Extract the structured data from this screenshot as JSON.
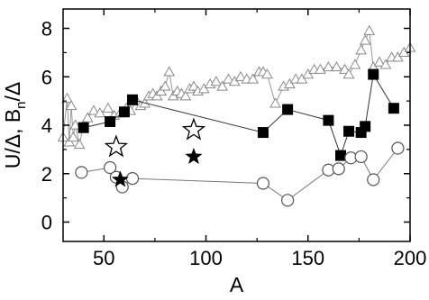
{
  "chart_data": {
    "type": "scatter",
    "title": "",
    "xlabel": "A",
    "ylabel": "U/Δ, B_n/Δ",
    "ylabel_parts": {
      "main_left": "U/Δ, B",
      "sub": "n",
      "main_right": "/Δ"
    },
    "xlim": [
      30,
      200
    ],
    "ylim": [
      -0.8,
      8.8
    ],
    "x_ticks": [
      50,
      100,
      150,
      200
    ],
    "y_ticks": [
      0,
      2,
      4,
      6,
      8
    ],
    "x_tick_labels": [
      "50",
      "100",
      "150",
      "200"
    ],
    "y_tick_labels": [
      "0",
      "2",
      "4",
      "6",
      "8"
    ],
    "grid": false,
    "legend": "none",
    "series": [
      {
        "marker": "open-triangle",
        "connected": true,
        "points": [
          [
            30,
            3.5
          ],
          [
            32,
            5.1
          ],
          [
            33,
            3.3
          ],
          [
            34,
            4.8
          ],
          [
            35,
            3.5
          ],
          [
            36,
            4.0
          ],
          [
            38,
            3.2
          ],
          [
            40,
            4.0
          ],
          [
            42,
            4.3
          ],
          [
            45,
            4.6
          ],
          [
            48,
            4.5
          ],
          [
            52,
            4.7
          ],
          [
            55,
            4.4
          ],
          [
            58,
            4.5
          ],
          [
            61,
            4.7
          ],
          [
            63,
            4.6
          ],
          [
            66,
            5.0
          ],
          [
            68,
            4.8
          ],
          [
            70,
            4.9
          ],
          [
            72,
            5.2
          ],
          [
            74,
            5.3
          ],
          [
            76,
            5.2
          ],
          [
            78,
            5.4
          ],
          [
            80,
            5.6
          ],
          [
            82,
            6.2
          ],
          [
            84,
            5.2
          ],
          [
            86,
            5.4
          ],
          [
            88,
            5.3
          ],
          [
            90,
            5.2
          ],
          [
            92,
            5.5
          ],
          [
            94,
            5.6
          ],
          [
            96,
            5.4
          ],
          [
            99,
            5.5
          ],
          [
            102,
            5.7
          ],
          [
            105,
            5.8
          ],
          [
            108,
            5.6
          ],
          [
            111,
            5.9
          ],
          [
            114,
            5.8
          ],
          [
            117,
            6.0
          ],
          [
            120,
            5.9
          ],
          [
            123,
            5.9
          ],
          [
            126,
            6.2
          ],
          [
            128,
            6.2
          ],
          [
            130,
            6.1
          ],
          [
            134,
            4.9
          ],
          [
            138,
            5.6
          ],
          [
            141,
            5.7
          ],
          [
            144,
            5.9
          ],
          [
            147,
            5.9
          ],
          [
            150,
            6.1
          ],
          [
            153,
            6.3
          ],
          [
            156,
            6.3
          ],
          [
            160,
            6.4
          ],
          [
            164,
            6.4
          ],
          [
            168,
            6.3
          ],
          [
            170,
            6.1
          ],
          [
            173,
            6.5
          ],
          [
            176,
            7.1
          ],
          [
            178,
            7.5
          ],
          [
            180,
            7.9
          ],
          [
            182,
            6.4
          ],
          [
            185,
            6.6
          ],
          [
            188,
            6.5
          ],
          [
            191,
            6.8
          ],
          [
            194,
            6.8
          ],
          [
            197,
            7.0
          ],
          [
            200,
            7.2
          ]
        ]
      },
      {
        "marker": "filled-square",
        "connected": true,
        "points": [
          [
            40,
            3.9
          ],
          [
            53,
            4.15
          ],
          [
            60,
            4.55
          ],
          [
            64,
            5.05
          ],
          [
            128,
            3.7
          ],
          [
            140,
            4.65
          ],
          [
            160,
            4.2
          ],
          [
            166,
            2.75
          ],
          [
            170,
            3.75
          ],
          [
            176,
            3.7
          ],
          [
            178,
            3.95
          ],
          [
            182,
            6.1
          ],
          [
            192,
            4.7
          ]
        ]
      },
      {
        "marker": "open-circle",
        "connected": true,
        "points": [
          [
            39,
            2.05
          ],
          [
            53,
            2.25
          ],
          [
            56,
            1.85
          ],
          [
            59,
            1.45
          ],
          [
            64,
            1.8
          ],
          [
            128,
            1.6
          ],
          [
            140,
            0.9
          ],
          [
            160,
            2.15
          ],
          [
            165,
            2.2
          ],
          [
            171,
            2.65
          ],
          [
            176,
            2.7
          ],
          [
            182,
            1.75
          ],
          [
            194,
            3.05
          ]
        ]
      },
      {
        "marker": "open-star",
        "connected": false,
        "points": [
          [
            56,
            3.1
          ],
          [
            94,
            3.8
          ]
        ]
      },
      {
        "marker": "filled-star",
        "connected": false,
        "points": [
          [
            58,
            1.75
          ],
          [
            94,
            2.7
          ]
        ]
      }
    ]
  }
}
